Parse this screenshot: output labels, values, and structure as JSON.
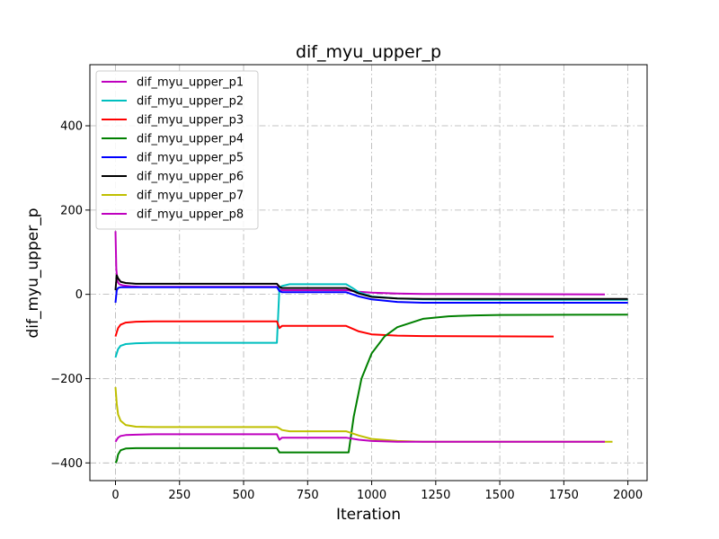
{
  "chart_data": {
    "type": "line",
    "title": "dif_myu_upper_p",
    "xlabel": "Iteration",
    "ylabel": "dif_myu_upper_p",
    "xlim": [
      -100,
      2075
    ],
    "ylim": [
      -442,
      545
    ],
    "xticks": [
      0,
      250,
      500,
      750,
      1000,
      1250,
      1500,
      1750,
      2000
    ],
    "yticks": [
      -400,
      -200,
      0,
      200,
      400
    ],
    "grid": true,
    "legend": "upper-left",
    "series": [
      {
        "name": "dif_myu_upper_p1",
        "color": "#bf00bf",
        "x": [
          0,
          3,
          8,
          15,
          30,
          60,
          100,
          630,
          640,
          650,
          900,
          950,
          1000,
          1100,
          1200,
          1910
        ],
        "y": [
          150,
          60,
          30,
          24,
          21,
          19,
          18,
          18,
          12,
          10,
          10,
          6,
          4,
          2,
          1,
          0
        ]
      },
      {
        "name": "dif_myu_upper_p2",
        "color": "#00bfbf",
        "x": [
          0,
          5,
          10,
          20,
          40,
          80,
          150,
          630,
          640,
          650,
          680,
          900,
          925,
          950,
          1000,
          1100,
          1200,
          1400,
          2000
        ],
        "y": [
          -150,
          -140,
          -130,
          -122,
          -118,
          -116,
          -115,
          -115,
          15,
          20,
          24,
          24,
          15,
          5,
          -5,
          -10,
          -12,
          -13,
          -13
        ]
      },
      {
        "name": "dif_myu_upper_p3",
        "color": "#ff0000",
        "x": [
          0,
          5,
          10,
          20,
          40,
          80,
          150,
          630,
          640,
          650,
          900,
          950,
          1000,
          1100,
          1200,
          1710
        ],
        "y": [
          -100,
          -90,
          -80,
          -72,
          -67,
          -65,
          -64,
          -64,
          -80,
          -75,
          -75,
          -88,
          -95,
          -98,
          -99,
          -100
        ]
      },
      {
        "name": "dif_myu_upper_p4",
        "color": "#008000",
        "x": [
          0,
          5,
          10,
          20,
          40,
          80,
          150,
          630,
          640,
          650,
          910,
          930,
          960,
          1000,
          1050,
          1100,
          1200,
          1300,
          1400,
          1500,
          2000
        ],
        "y": [
          -400,
          -395,
          -380,
          -370,
          -366,
          -365,
          -365,
          -365,
          -375,
          -375,
          -375,
          -290,
          -200,
          -140,
          -100,
          -78,
          -58,
          -52,
          -50,
          -49,
          -48
        ]
      },
      {
        "name": "dif_myu_upper_p5",
        "color": "#0000ff",
        "x": [
          0,
          5,
          10,
          20,
          40,
          80,
          150,
          630,
          640,
          650,
          900,
          950,
          1000,
          1100,
          1200,
          1400,
          2000
        ],
        "y": [
          -20,
          10,
          15,
          17,
          17,
          17,
          17,
          17,
          8,
          5,
          5,
          -5,
          -12,
          -18,
          -20,
          -20,
          -20
        ]
      },
      {
        "name": "dif_myu_upper_p6",
        "color": "#000000",
        "x": [
          0,
          5,
          10,
          20,
          40,
          80,
          150,
          630,
          640,
          650,
          900,
          950,
          1000,
          1100,
          1200,
          1400,
          2000
        ],
        "y": [
          10,
          45,
          38,
          30,
          27,
          25,
          25,
          25,
          18,
          15,
          15,
          2,
          -6,
          -10,
          -11,
          -11,
          -11
        ]
      },
      {
        "name": "dif_myu_upper_p7",
        "color": "#bfbf00",
        "x": [
          0,
          5,
          10,
          20,
          40,
          80,
          150,
          630,
          640,
          650,
          680,
          900,
          950,
          1000,
          1100,
          1200,
          1940
        ],
        "y": [
          -220,
          -260,
          -285,
          -300,
          -310,
          -314,
          -315,
          -315,
          -318,
          -322,
          -325,
          -325,
          -335,
          -343,
          -348,
          -350,
          -350
        ]
      },
      {
        "name": "dif_myu_upper_p8",
        "color": "#bf00bf",
        "x": [
          0,
          5,
          10,
          20,
          40,
          80,
          150,
          630,
          640,
          650,
          900,
          950,
          1000,
          1100,
          1200,
          1910
        ],
        "y": [
          -350,
          -345,
          -340,
          -336,
          -334,
          -333,
          -332,
          -332,
          -345,
          -340,
          -340,
          -345,
          -348,
          -350,
          -350,
          -350
        ]
      }
    ]
  }
}
